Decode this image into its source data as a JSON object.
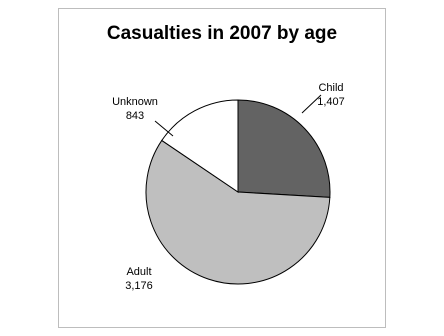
{
  "chart_data": {
    "type": "pie",
    "title": "Casualties in 2007 by age",
    "slices": [
      {
        "label": "Child",
        "value_label": "1,407",
        "value": 1407,
        "color": "#636363"
      },
      {
        "label": "Adult",
        "value_label": "3,176",
        "value": 3176,
        "color": "#bfbfbf"
      },
      {
        "label": "Unknown",
        "value_label": "843",
        "value": 843,
        "color": "#ffffff"
      }
    ],
    "slice_stroke": "#000000",
    "legend": "none",
    "start": "12 o'clock",
    "direction": "clockwise"
  }
}
